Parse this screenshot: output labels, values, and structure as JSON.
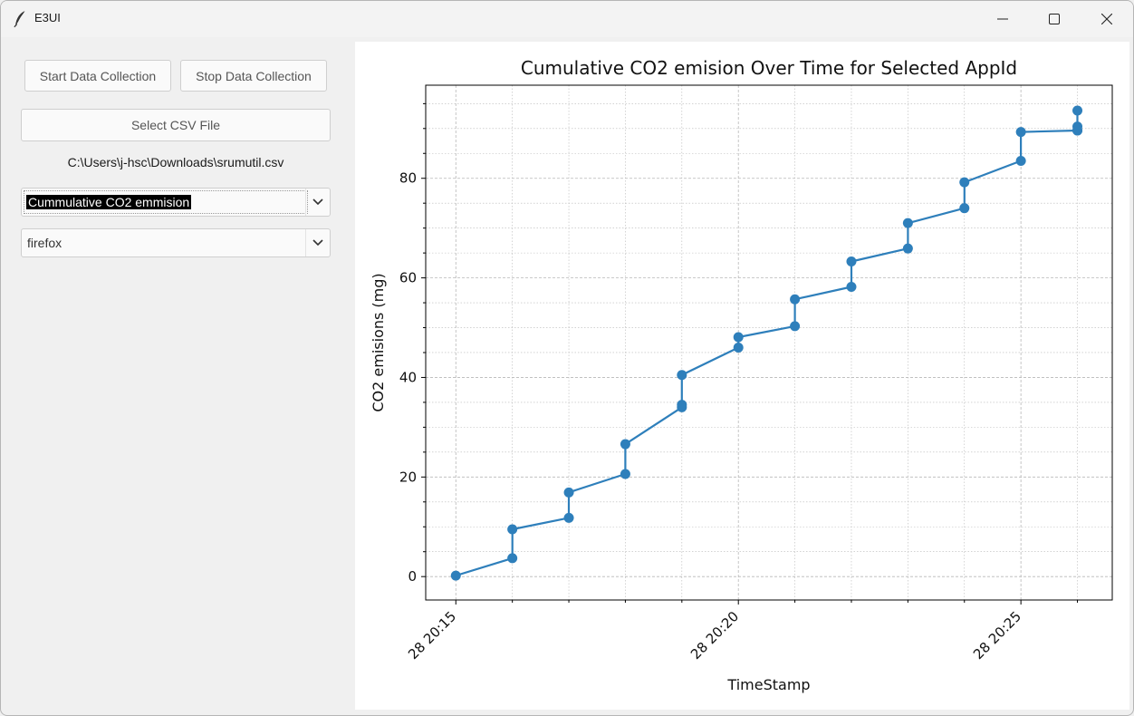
{
  "window": {
    "title": "E3UI",
    "icons": {
      "app": "feather-icon",
      "minimize": "minimize-icon",
      "maximize": "maximize-icon",
      "close": "close-icon"
    }
  },
  "controls": {
    "start_label": "Start Data Collection",
    "stop_label": "Stop Data Collection",
    "select_csv_label": "Select CSV File",
    "csv_path": "C:\\Users\\j-hsc\\Downloads\\srumutil.csv",
    "metric_select": {
      "selected": "Cummulative CO2 emmision",
      "icon": "chevron-down-icon"
    },
    "app_select": {
      "selected": "firefox",
      "icon": "chevron-down-icon"
    }
  },
  "colors": {
    "series": "#2e7fbb",
    "grid": "#b8b8b8"
  },
  "chart_data": {
    "type": "line",
    "title": "Cumulative CO2 emision Over Time for Selected AppId",
    "xlabel": "TimeStamp",
    "ylabel": "CO2 emisions (mg)",
    "x_ticks": [
      "28 20:15",
      "28 20:20",
      "28 20:25"
    ],
    "y_ticks": [
      0,
      20,
      40,
      60,
      80
    ],
    "xlim": [
      "20:14:28",
      "20:26:37"
    ],
    "ylim": [
      -4.7,
      98.7
    ],
    "grid": true,
    "series": [
      {
        "x": [
          "20:15:00",
          "20:16:00",
          "20:16:00",
          "20:17:00",
          "20:17:00",
          "20:18:00",
          "20:18:00",
          "20:19:00",
          "20:19:00",
          "20:19:00",
          "20:20:00",
          "20:20:00",
          "20:21:00",
          "20:21:00",
          "20:22:00",
          "20:22:00",
          "20:23:00",
          "20:23:00",
          "20:24:00",
          "20:24:00",
          "20:25:00",
          "20:25:00",
          "20:26:00",
          "20:26:00",
          "20:26:00",
          "20:26:00"
        ],
        "y": [
          0.2,
          3.7,
          9.5,
          11.8,
          16.9,
          20.6,
          26.6,
          34.0,
          34.5,
          40.5,
          46.0,
          48.1,
          50.3,
          55.7,
          58.2,
          63.3,
          65.9,
          71.0,
          74.0,
          79.2,
          83.5,
          89.3,
          89.6,
          90.4,
          93.6,
          89.6
        ]
      }
    ]
  }
}
